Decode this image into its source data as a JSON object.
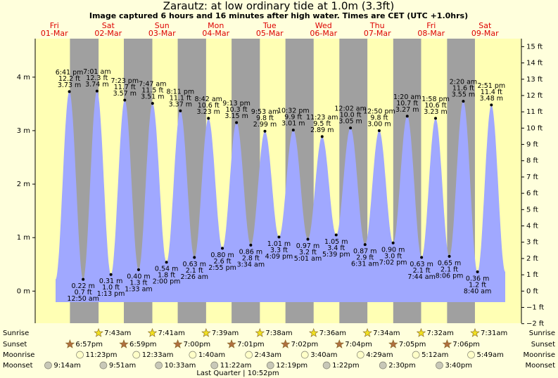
{
  "chart_data": {
    "type": "area",
    "title": "Zarautz: at low  ordinary tide at 1.0m (3.3ft)",
    "subtitle": "Image captured 6 hours and 16 minutes after high water. Times are CET (UTC +1.0hrs)",
    "days": [
      "Fri",
      "Sat",
      "Sun",
      "Mon",
      "Tue",
      "Wed",
      "Thu",
      "Fri",
      "Sat"
    ],
    "dates": [
      "01-Mar",
      "02-Mar",
      "03-Mar",
      "04-Mar",
      "05-Mar",
      "06-Mar",
      "07-Mar",
      "08-Mar",
      "09-Mar"
    ],
    "tides": {
      "times": [
        "6:41 pm",
        "12:50 am",
        "7:01 am",
        "1:13 pm",
        "7:23 pm",
        "1:33 am",
        "7:47 am",
        "2:00 pm",
        "8:11 pm",
        "2:26 am",
        "8:42 am",
        "2:55 pm",
        "9:13 pm",
        "3:34 am",
        "9:53 am",
        "4:09 pm",
        "10:32 pm",
        "5:01 am",
        "11:23 am",
        "5:39 pm",
        "12:02 am",
        "6:31 am",
        "12:50 pm",
        "7:02 pm",
        "1:20 am",
        "7:44 am",
        "1:58 pm",
        "8:06 pm",
        "2:20 am",
        "8:40 am",
        "2:51 pm"
      ],
      "values": [
        3.73,
        0.22,
        3.74,
        0.31,
        3.57,
        0.4,
        3.51,
        0.54,
        3.37,
        0.63,
        3.23,
        0.8,
        3.15,
        0.86,
        2.99,
        1.01,
        3.01,
        0.97,
        2.89,
        1.05,
        3.05,
        0.87,
        3.0,
        0.9,
        3.27,
        0.63,
        3.23,
        0.65,
        3.55,
        0.36,
        3.48
      ],
      "value_labels": [
        "3.73 m",
        "0.22 m",
        "3.74 m",
        "0.31 m",
        "3.57 m",
        "0.40 m",
        "3.51 m",
        "0.54 m",
        "3.37 m",
        "0.63 m",
        "3.23 m",
        "0.80 m",
        "3.15 m",
        "0.86 m",
        "2.99 m",
        "1.01 m",
        "3.01 m",
        "0.97 m",
        "2.89 m",
        "1.05 m",
        "3.05 m",
        "0.87 m",
        "3.00 m",
        "0.90 m",
        "3.27 m",
        "0.63 m",
        "3.23 m",
        "0.65 m",
        "3.55 m",
        "0.36 m",
        "3.48 m"
      ],
      "feet_labels": [
        "12.2 ft",
        "0.7 ft",
        "12.3 ft",
        "1.0 ft",
        "11.7 ft",
        "1.3 ft",
        "11.5 ft",
        "1.8 ft",
        "11.1 ft",
        "2.1 ft",
        "10.6 ft",
        "2.6 ft",
        "10.3 ft",
        "2.8 ft",
        "9.8 ft",
        "3.3 ft",
        "9.9 ft",
        "3.2 ft",
        "9.5 ft",
        "3.4 ft",
        "10.0 ft",
        "2.9 ft",
        "9.8 ft",
        "3.0 ft",
        "10.7 ft",
        "2.1 ft",
        "10.6 ft",
        "2.1 ft",
        "11.6 ft",
        "1.2 ft",
        "11.4 ft"
      ],
      "color": "#a0a8ff"
    },
    "ylim": [
      -0.6,
      4.72
    ],
    "yticks": [
      {
        "value": 0,
        "label": "0 m"
      },
      {
        "value": 1,
        "label": "1 m"
      },
      {
        "value": 2,
        "label": "2 m"
      },
      {
        "value": 3,
        "label": "3 m"
      },
      {
        "value": 4,
        "label": "4 m"
      }
    ],
    "y2lim": [
      -1.97,
      15.49
    ],
    "y2ticks": [
      {
        "value": -2,
        "label": "−2 ft"
      },
      {
        "value": -1,
        "label": "−1 ft"
      },
      {
        "value": 0,
        "label": "0 ft"
      },
      {
        "value": 1,
        "label": "1 ft"
      },
      {
        "value": 2,
        "label": "2 ft"
      },
      {
        "value": 3,
        "label": "3 ft"
      },
      {
        "value": 4,
        "label": "4 ft"
      },
      {
        "value": 5,
        "label": "5 ft"
      },
      {
        "value": 6,
        "label": "6 ft"
      },
      {
        "value": 7,
        "label": "7 ft"
      },
      {
        "value": 8,
        "label": "8 ft"
      },
      {
        "value": 9,
        "label": "9 ft"
      },
      {
        "value": 10,
        "label": "10 ft"
      },
      {
        "value": 11,
        "label": "11 ft"
      },
      {
        "value": 12,
        "label": "12 ft"
      },
      {
        "value": 13,
        "label": "13 ft"
      },
      {
        "value": 14,
        "label": "14 ft"
      },
      {
        "value": 15,
        "label": "15 ft"
      }
    ],
    "day_color": "#ffffb4",
    "night_color": "#a0a0a0",
    "rows": [
      {
        "name": "Sunrise",
        "times": [
          null,
          "7:43am",
          "7:41am",
          "7:39am",
          "7:38am",
          "7:36am",
          "7:34am",
          "7:32am",
          "7:31am"
        ]
      },
      {
        "name": "Sunset",
        "times": [
          "6:57pm",
          "6:59pm",
          "7:00pm",
          "7:01pm",
          "7:02pm",
          "7:04pm",
          "7:05pm",
          "7:06pm",
          null
        ]
      },
      {
        "name": "Moonrise",
        "times": [
          "11:23pm",
          null,
          "12:33am",
          "1:40am",
          "2:43am",
          "3:40am",
          "4:29am",
          "5:12am",
          "5:49am"
        ]
      },
      {
        "name": "Moonset",
        "times": [
          "9:14am",
          "9:51am",
          "10:33am",
          "11:22am",
          "12:19pm",
          "1:22pm",
          "2:30pm",
          "3:40pm",
          null
        ]
      }
    ],
    "moon_phase": "Last Quarter | 10:52pm"
  }
}
